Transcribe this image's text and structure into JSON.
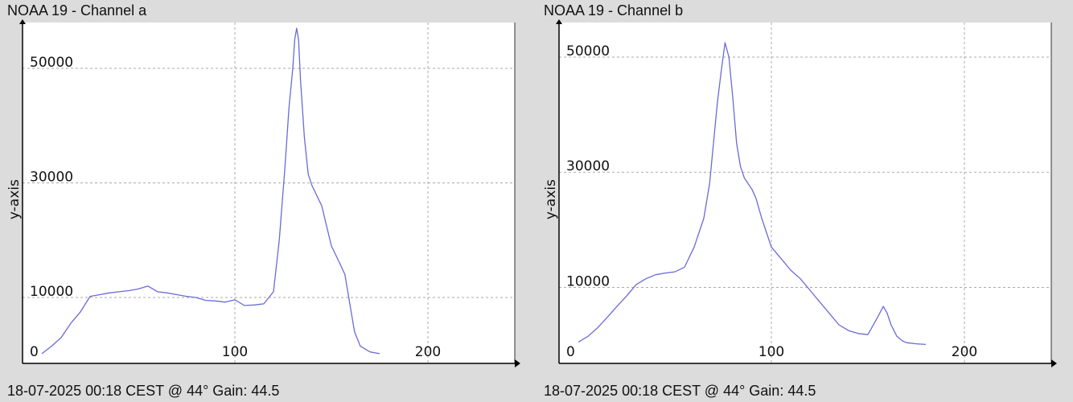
{
  "chart_data": [
    {
      "type": "line",
      "title": "NOAA 19 - Channel a",
      "footer": "18-07-2025 00:18 CEST @ 44° Gain: 44.5",
      "ylabel": "y-axis",
      "xlabel": "",
      "xlim": [
        -10,
        245
      ],
      "ylim": [
        -1500,
        58000
      ],
      "xticks": [
        0,
        100,
        200
      ],
      "yticks": [
        10000,
        30000,
        50000
      ],
      "xtick_labels": [
        "0",
        "100",
        "200"
      ],
      "ytick_labels": [
        "10000",
        "30000",
        "50000"
      ],
      "grid": true,
      "line_color": "#6a6ad8",
      "series": [
        {
          "x": [
            0,
            5,
            10,
            15,
            20,
            25,
            30,
            35,
            40,
            45,
            50,
            55,
            60,
            65,
            70,
            75,
            80,
            85,
            90,
            95,
            100,
            105,
            110,
            115,
            120,
            123,
            126,
            128,
            130,
            131,
            132,
            133,
            134,
            136,
            138,
            140,
            145,
            150,
            155,
            157,
            160,
            162,
            165,
            170,
            175
          ],
          "y": [
            200,
            1500,
            3000,
            5500,
            7500,
            10200,
            10500,
            10800,
            11000,
            11200,
            11500,
            12000,
            11000,
            10800,
            10500,
            10200,
            10000,
            9500,
            9400,
            9200,
            9600,
            8600,
            8700,
            8900,
            11000,
            20000,
            33000,
            43000,
            50000,
            55000,
            57000,
            55000,
            48000,
            38000,
            31500,
            29500,
            26000,
            19000,
            15500,
            14000,
            8000,
            4000,
            1500,
            500,
            200
          ]
        }
      ]
    },
    {
      "type": "line",
      "title": "NOAA 19 - Channel b",
      "footer": "18-07-2025 00:18 CEST @ 44° Gain: 44.5",
      "ylabel": "y-axis",
      "xlabel": "",
      "xlim": [
        -10,
        245
      ],
      "ylim": [
        -3200,
        56000
      ],
      "xticks": [
        0,
        100,
        200
      ],
      "yticks": [
        10000,
        30000,
        50000
      ],
      "xtick_labels": [
        "0",
        "100",
        "200"
      ],
      "ytick_labels": [
        "10000",
        "30000",
        "50000"
      ],
      "grid": true,
      "line_color": "#6a6ad8",
      "series": [
        {
          "x": [
            0,
            5,
            10,
            15,
            20,
            25,
            30,
            35,
            40,
            45,
            50,
            55,
            60,
            65,
            68,
            70,
            72,
            74,
            76,
            78,
            80,
            82,
            84,
            86,
            88,
            90,
            92,
            95,
            100,
            105,
            110,
            115,
            120,
            125,
            130,
            135,
            140,
            145,
            150,
            155,
            158,
            160,
            162,
            165,
            168,
            170,
            175,
            180
          ],
          "y": [
            500,
            1500,
            3000,
            4800,
            6700,
            8500,
            10500,
            11500,
            12200,
            12500,
            12700,
            13500,
            17000,
            22000,
            28000,
            35000,
            42000,
            47500,
            52500,
            50000,
            43000,
            35000,
            31000,
            29000,
            28000,
            27000,
            25500,
            22000,
            17000,
            15000,
            13000,
            11500,
            9500,
            7500,
            5500,
            3500,
            2500,
            2000,
            1800,
            4800,
            6700,
            5500,
            3500,
            1500,
            700,
            400,
            200,
            100
          ]
        }
      ]
    }
  ]
}
